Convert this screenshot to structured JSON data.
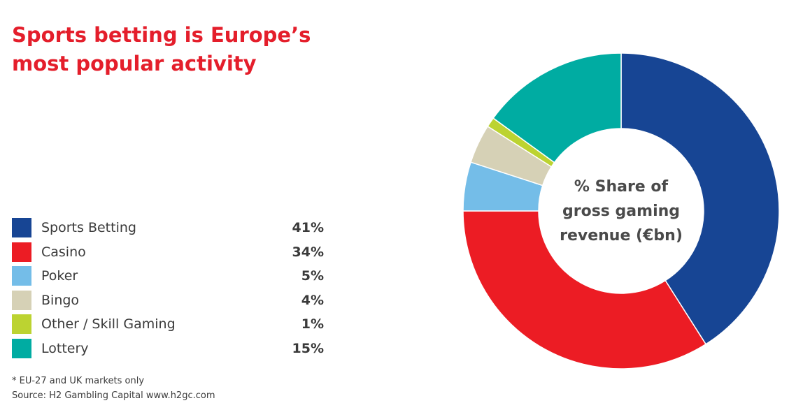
{
  "title": {
    "line1": "Sports betting is Europe’s",
    "line2": "most popular activity"
  },
  "footnote": {
    "note": "* EU-27 and UK markets only",
    "source": "Source: H2 Gambling Capital www.h2gc.com"
  },
  "chart_data": {
    "type": "pie",
    "donut": true,
    "center_label": [
      "% Share of",
      "gross gaming",
      "revenue (€bn)"
    ],
    "categories": [
      "Sports Betting",
      "Casino",
      "Poker",
      "Bingo",
      "Other / Skill Gaming",
      "Lottery"
    ],
    "values": [
      41,
      34,
      5,
      4,
      1,
      15
    ],
    "value_labels": [
      "41%",
      "34%",
      "5%",
      "4%",
      "1%",
      "15%"
    ],
    "colors": [
      "#174594",
      "#ec1c24",
      "#74bde8",
      "#d6d1b6",
      "#bcd331",
      "#00aca2"
    ],
    "legend_position": "left"
  }
}
